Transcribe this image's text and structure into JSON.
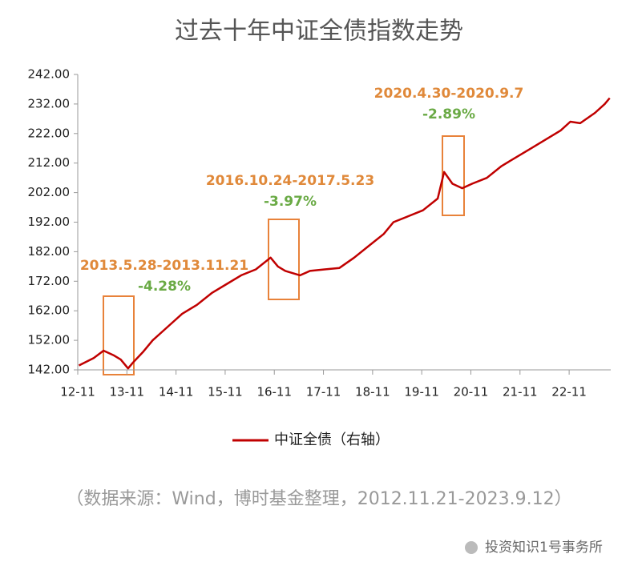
{
  "chart_data": {
    "type": "line",
    "title": "过去十年中证全债指数走势",
    "x": [
      2012.9,
      2013.2,
      2013.4,
      2013.6,
      2013.75,
      2013.9,
      2014.0,
      2014.2,
      2014.4,
      2014.6,
      2014.8,
      2015.0,
      2015.3,
      2015.6,
      2015.9,
      2016.2,
      2016.5,
      2016.8,
      2016.95,
      2017.1,
      2017.4,
      2017.6,
      2017.9,
      2018.2,
      2018.5,
      2018.8,
      2019.1,
      2019.3,
      2019.6,
      2019.9,
      2020.2,
      2020.33,
      2020.5,
      2020.7,
      2020.9,
      2021.2,
      2021.5,
      2021.8,
      2022.1,
      2022.4,
      2022.7,
      2022.9,
      2023.1,
      2023.4,
      2023.6,
      2023.7
    ],
    "series": [
      {
        "name": "中证全债（右轴）",
        "color": "#c00000",
        "values": [
          143.5,
          146,
          148.5,
          147,
          145.5,
          142.5,
          144.5,
          148,
          152,
          155,
          158,
          161,
          164,
          168,
          171,
          174,
          176,
          180,
          177,
          175.5,
          174,
          175.5,
          176,
          176.5,
          180,
          184,
          188,
          192,
          194,
          196,
          200,
          209,
          205,
          203.5,
          205,
          207,
          211,
          214,
          217,
          220,
          223,
          226,
          225.5,
          229,
          232,
          234
        ]
      }
    ],
    "xlim": [
      2012.875,
      2023.95
    ],
    "xticks": [
      {
        "value": 2012.875,
        "label": "12-11"
      },
      {
        "value": 2013.875,
        "label": "13-11"
      },
      {
        "value": 2014.875,
        "label": "14-11"
      },
      {
        "value": 2015.875,
        "label": "15-11"
      },
      {
        "value": 2016.875,
        "label": "16-11"
      },
      {
        "value": 2017.875,
        "label": "17-11"
      },
      {
        "value": 2018.875,
        "label": "18-11"
      },
      {
        "value": 2019.875,
        "label": "19-11"
      },
      {
        "value": 2020.875,
        "label": "20-11"
      },
      {
        "value": 2021.875,
        "label": "21-11"
      },
      {
        "value": 2022.875,
        "label": "22-11"
      }
    ],
    "ylim": [
      142,
      242
    ],
    "yticks": [
      {
        "value": 142,
        "label": "142.00"
      },
      {
        "value": 152,
        "label": "152.00"
      },
      {
        "value": 162,
        "label": "162.00"
      },
      {
        "value": 172,
        "label": "172.00"
      },
      {
        "value": 182,
        "label": "182.00"
      },
      {
        "value": 192,
        "label": "192.00"
      },
      {
        "value": 202,
        "label": "202.00"
      },
      {
        "value": 212,
        "label": "212.00"
      },
      {
        "value": 222,
        "label": "222.00"
      },
      {
        "value": 232,
        "label": "232.00"
      },
      {
        "value": 242,
        "label": "242.00"
      }
    ],
    "annotations": [
      {
        "period": "2013.5.28-2013.11.21",
        "change": "-4.28%"
      },
      {
        "period": "2016.10.24-2017.5.23",
        "change": "-3.97%"
      },
      {
        "period": "2020.4.30-2020.9.7",
        "change": "-2.89%"
      }
    ],
    "source": "（数据来源：Wind，博时基金整理，2012.11.21-2023.9.12）",
    "watermark": "投资知识1号事务所"
  }
}
